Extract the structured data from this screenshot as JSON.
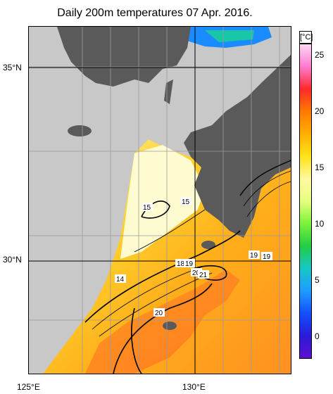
{
  "title": "Daily 200m temperatures 07 Apr. 2016.",
  "axes": {
    "lat_labels": [
      "35°N",
      "30°N"
    ],
    "lon_labels": [
      "125°E",
      "130°E"
    ]
  },
  "colorbar": {
    "unit": "[°C]",
    "ticks": [
      "25",
      "20",
      "15",
      "10",
      "5",
      "0"
    ],
    "stops": [
      "#ffd6f5",
      "#ff7ad1",
      "#ff2a2a",
      "#ff7a00",
      "#ffb000",
      "#ffe31a",
      "#fff8a0",
      "#e6ff80",
      "#7cf23a",
      "#22cc44",
      "#18c7c7",
      "#1e9cff",
      "#1450ff",
      "#2a1bd6",
      "#5d0fd1"
    ]
  },
  "contour_labels": [
    {
      "text": "15"
    },
    {
      "text": "15"
    },
    {
      "text": "14"
    },
    {
      "text": "18"
    },
    {
      "text": "19"
    },
    {
      "text": "20"
    },
    {
      "text": "21"
    },
    {
      "text": "19"
    },
    {
      "text": "19"
    },
    {
      "text": "20"
    }
  ],
  "colors": {
    "land": "#5a5a5a",
    "no_data": "#c8c8c8",
    "grid": "#9a9a9a"
  }
}
